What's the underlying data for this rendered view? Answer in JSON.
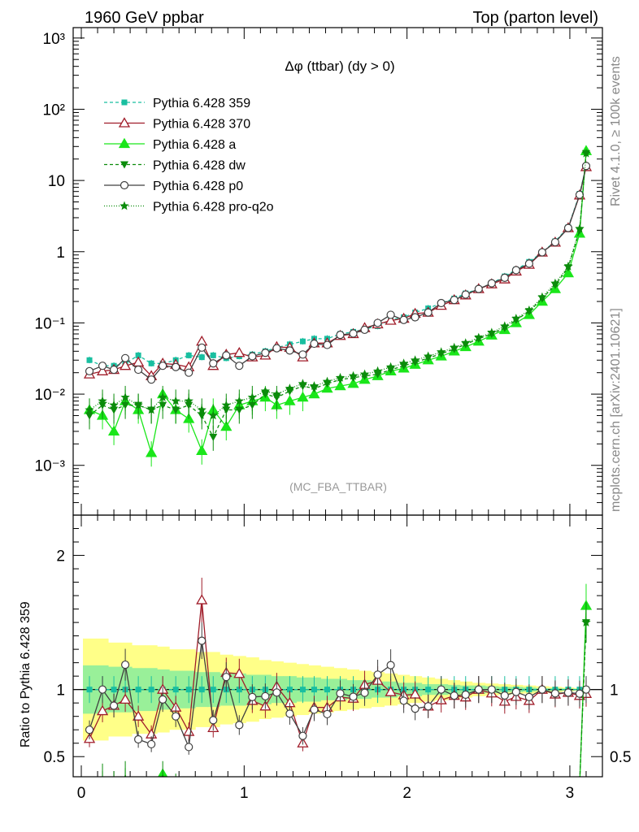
{
  "header": {
    "left": "1960 GeV ppbar",
    "right": "Top (parton level)"
  },
  "side": {
    "rivet": "Rivet 4.1.0, ≥ 100k events",
    "mcplots": "mcplots.cern.ch [arXiv:2401.10621]"
  },
  "chart_data": {
    "type": "line",
    "title": "Δφ (ttbar) (dy > 0)",
    "analysis": "(MC_FBA_TTBAR)",
    "xlabel": "",
    "ylabel_ratio": "Ratio to Pythia 6.428 359",
    "xlim": [
      -0.05,
      3.2
    ],
    "ylim_main": [
      0.0002,
      1400
    ],
    "ylim_ratio": [
      0.35,
      2.3
    ],
    "y_scale_main": "log",
    "x_ticks": [
      "0",
      "1",
      "2",
      "3"
    ],
    "y_ticks_main": [
      "10⁻³",
      "10⁻²",
      "10⁻¹",
      "1",
      "10",
      "10²",
      "10³"
    ],
    "y_ticks_ratio": [
      "0.5",
      "1",
      "2"
    ],
    "legend_position": "top-left",
    "x": [
      0.05,
      0.13,
      0.2,
      0.27,
      0.35,
      0.43,
      0.5,
      0.58,
      0.66,
      0.74,
      0.81,
      0.89,
      0.97,
      1.05,
      1.13,
      1.2,
      1.28,
      1.36,
      1.43,
      1.51,
      1.59,
      1.67,
      1.74,
      1.82,
      1.9,
      1.98,
      2.05,
      2.13,
      2.21,
      2.29,
      2.36,
      2.44,
      2.52,
      2.6,
      2.67,
      2.75,
      2.83,
      2.91,
      2.99,
      3.06,
      3.1
    ],
    "band_total": [
      [
        0.62,
        1.38
      ],
      [
        0.62,
        1.38
      ],
      [
        0.65,
        1.35
      ],
      [
        0.65,
        1.35
      ],
      [
        0.67,
        1.33
      ],
      [
        0.67,
        1.33
      ],
      [
        0.68,
        1.32
      ],
      [
        0.7,
        1.3
      ],
      [
        0.7,
        1.3
      ],
      [
        0.72,
        1.28
      ],
      [
        0.72,
        1.28
      ],
      [
        0.74,
        1.26
      ],
      [
        0.75,
        1.25
      ],
      [
        0.76,
        1.24
      ],
      [
        0.78,
        1.22
      ],
      [
        0.79,
        1.21
      ],
      [
        0.8,
        1.2
      ],
      [
        0.81,
        1.19
      ],
      [
        0.82,
        1.18
      ],
      [
        0.83,
        1.17
      ],
      [
        0.84,
        1.16
      ],
      [
        0.85,
        1.15
      ],
      [
        0.86,
        1.14
      ],
      [
        0.87,
        1.13
      ],
      [
        0.88,
        1.12
      ],
      [
        0.89,
        1.11
      ],
      [
        0.9,
        1.1
      ],
      [
        0.91,
        1.09
      ],
      [
        0.92,
        1.08
      ],
      [
        0.93,
        1.07
      ],
      [
        0.94,
        1.06
      ],
      [
        0.95,
        1.05
      ],
      [
        0.955,
        1.045
      ],
      [
        0.96,
        1.04
      ],
      [
        0.965,
        1.035
      ],
      [
        0.97,
        1.03
      ],
      [
        0.975,
        1.025
      ],
      [
        0.98,
        1.02
      ],
      [
        0.985,
        1.015
      ],
      [
        0.99,
        1.01
      ],
      [
        0.99,
        1.01
      ]
    ],
    "band_stat": [
      [
        0.82,
        1.18
      ],
      [
        0.82,
        1.18
      ],
      [
        0.83,
        1.17
      ],
      [
        0.83,
        1.17
      ],
      [
        0.84,
        1.16
      ],
      [
        0.84,
        1.16
      ],
      [
        0.85,
        1.15
      ],
      [
        0.86,
        1.14
      ],
      [
        0.86,
        1.14
      ],
      [
        0.87,
        1.13
      ],
      [
        0.87,
        1.13
      ],
      [
        0.88,
        1.12
      ],
      [
        0.88,
        1.12
      ],
      [
        0.89,
        1.11
      ],
      [
        0.89,
        1.11
      ],
      [
        0.9,
        1.1
      ],
      [
        0.9,
        1.1
      ],
      [
        0.91,
        1.09
      ],
      [
        0.91,
        1.09
      ],
      [
        0.92,
        1.08
      ],
      [
        0.92,
        1.08
      ],
      [
        0.93,
        1.07
      ],
      [
        0.93,
        1.07
      ],
      [
        0.94,
        1.06
      ],
      [
        0.94,
        1.06
      ],
      [
        0.95,
        1.05
      ],
      [
        0.95,
        1.05
      ],
      [
        0.96,
        1.04
      ],
      [
        0.96,
        1.04
      ],
      [
        0.965,
        1.035
      ],
      [
        0.97,
        1.03
      ],
      [
        0.97,
        1.03
      ],
      [
        0.975,
        1.025
      ],
      [
        0.98,
        1.02
      ],
      [
        0.98,
        1.02
      ],
      [
        0.985,
        1.015
      ],
      [
        0.99,
        1.01
      ],
      [
        0.99,
        1.01
      ],
      [
        0.993,
        1.007
      ],
      [
        0.995,
        1.005
      ],
      [
        0.995,
        1.005
      ]
    ],
    "series": [
      {
        "name": "Pythia 6.428 359",
        "color": "#19bfa0",
        "dash": "4,3",
        "marker": "square",
        "filled": true,
        "values": [
          0.03,
          0.025,
          0.025,
          0.027,
          0.035,
          0.027,
          0.027,
          0.03,
          0.035,
          0.033,
          0.035,
          0.032,
          0.034,
          0.036,
          0.04,
          0.045,
          0.05,
          0.055,
          0.06,
          0.06,
          0.07,
          0.075,
          0.082,
          0.09,
          0.11,
          0.12,
          0.14,
          0.16,
          0.19,
          0.22,
          0.26,
          0.3,
          0.36,
          0.45,
          0.56,
          0.72,
          0.98,
          1.4,
          2.2,
          6.5,
          16
        ]
      },
      {
        "name": "Pythia 6.428 370",
        "color": "#a01d2a",
        "dash": "",
        "marker": "triangle-open",
        "filled": false,
        "values": [
          0.019,
          0.021,
          0.022,
          0.025,
          0.028,
          0.018,
          0.027,
          0.026,
          0.024,
          0.055,
          0.025,
          0.036,
          0.038,
          0.033,
          0.035,
          0.046,
          0.045,
          0.033,
          0.052,
          0.052,
          0.066,
          0.07,
          0.085,
          0.096,
          0.108,
          0.115,
          0.135,
          0.14,
          0.175,
          0.21,
          0.245,
          0.3,
          0.35,
          0.41,
          0.53,
          0.66,
          0.98,
          1.35,
          2.15,
          6.2,
          15.5
        ]
      },
      {
        "name": "Pythia 6.428 a",
        "color": "#1ae61a",
        "dash": "",
        "marker": "triangle",
        "filled": true,
        "values": [
          0.006,
          0.005,
          0.003,
          0.008,
          0.006,
          0.0015,
          0.01,
          0.006,
          0.0045,
          0.0016,
          0.006,
          0.0035,
          0.007,
          0.008,
          0.009,
          0.007,
          0.008,
          0.009,
          0.01,
          0.012,
          0.013,
          0.014,
          0.016,
          0.018,
          0.021,
          0.023,
          0.026,
          0.03,
          0.034,
          0.04,
          0.046,
          0.055,
          0.067,
          0.08,
          0.1,
          0.13,
          0.2,
          0.3,
          0.5,
          1.8,
          26
        ]
      },
      {
        "name": "Pythia 6.428 dw",
        "color": "#0b8c0b",
        "dash": "4,3",
        "marker": "triangle-down",
        "filled": true,
        "values": [
          0.005,
          0.007,
          0.006,
          0.007,
          0.007,
          0.006,
          0.007,
          0.006,
          0.007,
          0.005,
          0.0025,
          0.006,
          0.006,
          0.007,
          0.01,
          0.009,
          0.011,
          0.013,
          0.012,
          0.014,
          0.016,
          0.017,
          0.018,
          0.019,
          0.022,
          0.025,
          0.028,
          0.032,
          0.037,
          0.043,
          0.05,
          0.06,
          0.07,
          0.085,
          0.11,
          0.145,
          0.22,
          0.34,
          0.6,
          2.0,
          24
        ]
      },
      {
        "name": "Pythia 6.428 p0",
        "color": "#404040",
        "dash": "",
        "marker": "circle-open",
        "filled": false,
        "values": [
          0.021,
          0.025,
          0.022,
          0.032,
          0.022,
          0.016,
          0.025,
          0.024,
          0.02,
          0.045,
          0.027,
          0.035,
          0.025,
          0.034,
          0.038,
          0.044,
          0.041,
          0.036,
          0.051,
          0.049,
          0.068,
          0.071,
          0.08,
          0.1,
          0.13,
          0.11,
          0.12,
          0.14,
          0.19,
          0.21,
          0.25,
          0.3,
          0.36,
          0.43,
          0.55,
          0.68,
          0.98,
          1.36,
          2.15,
          6.3,
          16
        ]
      },
      {
        "name": "Pythia 6.428 pro-q2o",
        "color": "#0b8c0b",
        "dash": "1,2",
        "marker": "star",
        "filled": true,
        "values": [
          0.006,
          0.008,
          0.007,
          0.009,
          0.007,
          0.006,
          0.009,
          0.008,
          0.008,
          0.006,
          0.005,
          0.007,
          0.008,
          0.009,
          0.011,
          0.01,
          0.012,
          0.014,
          0.013,
          0.015,
          0.017,
          0.018,
          0.019,
          0.021,
          0.024,
          0.027,
          0.03,
          0.034,
          0.039,
          0.045,
          0.052,
          0.062,
          0.073,
          0.09,
          0.115,
          0.15,
          0.23,
          0.36,
          0.62,
          2.1,
          24
        ]
      }
    ]
  }
}
